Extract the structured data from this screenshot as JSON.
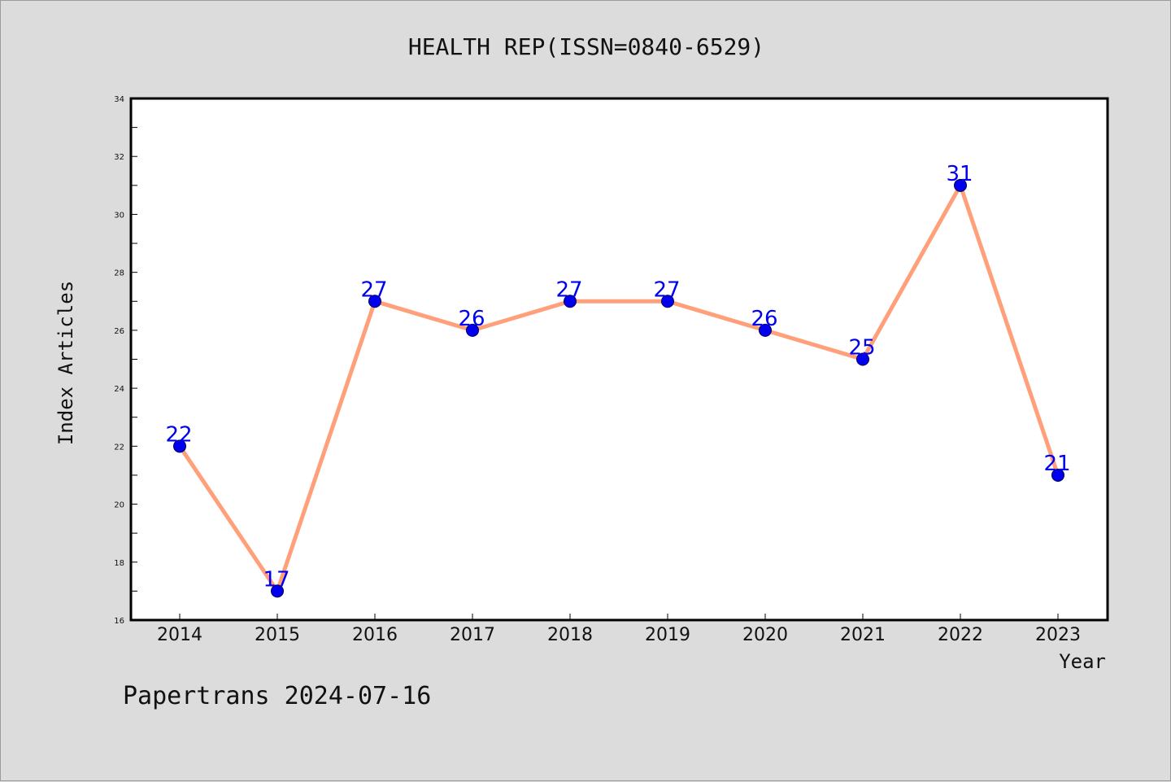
{
  "chart_data": {
    "type": "line",
    "title": "HEALTH REP(ISSN=0840-6529)",
    "xlabel": "Year",
    "ylabel": "Index Articles",
    "categories": [
      "2014",
      "2015",
      "2016",
      "2017",
      "2018",
      "2019",
      "2020",
      "2021",
      "2022",
      "2023"
    ],
    "values": [
      22,
      17,
      27,
      26,
      27,
      27,
      26,
      25,
      31,
      21
    ],
    "ylim": [
      16,
      34
    ],
    "yticks": [
      16,
      18,
      20,
      22,
      24,
      26,
      28,
      30,
      32,
      34
    ],
    "grid": false,
    "line_color": "#ffa07a",
    "marker_color": "#0000ee",
    "label_color": "#0000ee"
  },
  "footer": {
    "text": "Papertrans 2024-07-16"
  }
}
